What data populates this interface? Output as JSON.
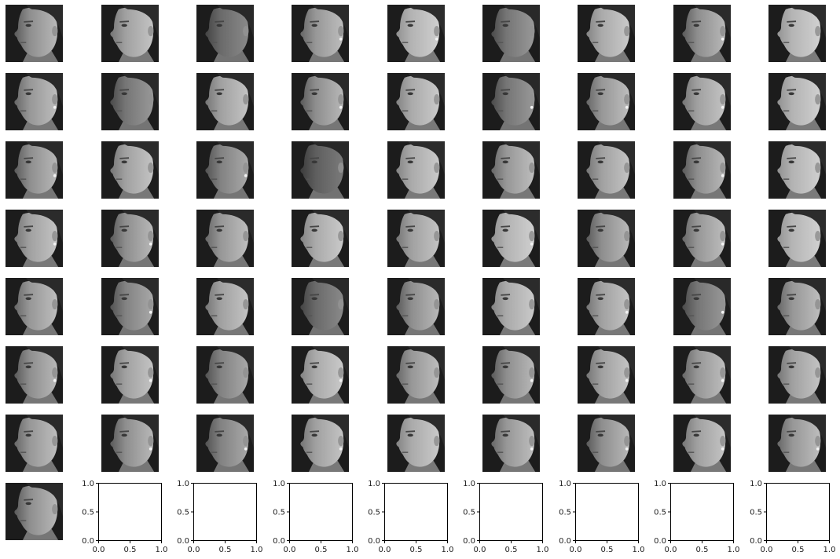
{
  "chart_data": {
    "type": "image-grid",
    "title": "",
    "grid": {
      "rows": 8,
      "cols": 9
    },
    "image_count": 64,
    "empty_axes_count": 8,
    "colormap": "grayscale",
    "face_variants": [
      {
        "e": 0,
        "b": 0.0
      },
      {
        "e": 0,
        "b": 0.02
      },
      {
        "e": 0,
        "b": -0.03
      },
      {
        "e": 1,
        "b": 0.01
      },
      {
        "e": 1,
        "b": 0.04
      },
      {
        "e": 0,
        "b": -0.02
      },
      {
        "e": 0,
        "b": 0.03
      },
      {
        "e": 1,
        "b": 0.0
      },
      {
        "e": 0,
        "b": 0.05
      },
      {
        "e": 1,
        "b": 0.01
      },
      {
        "e": 0,
        "b": -0.02
      },
      {
        "e": 0,
        "b": 0.02
      },
      {
        "e": 1,
        "b": 0.0
      },
      {
        "e": 0,
        "b": 0.03
      },
      {
        "e": 1,
        "b": -0.02
      },
      {
        "e": 1,
        "b": 0.01
      },
      {
        "e": 1,
        "b": 0.02
      },
      {
        "e": 0,
        "b": 0.04
      },
      {
        "e": 1,
        "b": 0.0
      },
      {
        "e": 0,
        "b": 0.02
      },
      {
        "e": 1,
        "b": -0.01
      },
      {
        "e": 0,
        "b": -0.04
      },
      {
        "e": 0,
        "b": 0.03
      },
      {
        "e": 0,
        "b": 0.01
      },
      {
        "e": 0,
        "b": 0.02
      },
      {
        "e": 1,
        "b": 0.0
      },
      {
        "e": 0,
        "b": 0.04
      },
      {
        "e": 1,
        "b": 0.02
      },
      {
        "e": 1,
        "b": 0.0
      },
      {
        "e": 0,
        "b": 0.01
      },
      {
        "e": 0,
        "b": 0.03
      },
      {
        "e": 0,
        "b": 0.02
      },
      {
        "e": 1,
        "b": 0.04
      },
      {
        "e": 0,
        "b": 0.0
      },
      {
        "e": 1,
        "b": 0.01
      },
      {
        "e": 0,
        "b": 0.05
      },
      {
        "e": 0,
        "b": 0.01
      },
      {
        "e": 1,
        "b": -0.01
      },
      {
        "e": 0,
        "b": 0.02
      },
      {
        "e": 0,
        "b": -0.03
      },
      {
        "e": 0,
        "b": 0.0
      },
      {
        "e": 0,
        "b": 0.03
      },
      {
        "e": 1,
        "b": 0.02
      },
      {
        "e": 1,
        "b": -0.02
      },
      {
        "e": 0,
        "b": 0.01
      },
      {
        "e": 1,
        "b": 0.0
      },
      {
        "e": 1,
        "b": 0.02
      },
      {
        "e": 0,
        "b": -0.01
      },
      {
        "e": 1,
        "b": 0.03
      },
      {
        "e": 0,
        "b": 0.01
      },
      {
        "e": 1,
        "b": 0.0
      },
      {
        "e": 1,
        "b": 0.02
      },
      {
        "e": 1,
        "b": 0.01
      },
      {
        "e": 0,
        "b": 0.02
      },
      {
        "e": 0,
        "b": 0.01
      },
      {
        "e": 1,
        "b": 0.0
      },
      {
        "e": 1,
        "b": -0.01
      },
      {
        "e": 1,
        "b": 0.02
      },
      {
        "e": 0,
        "b": 0.03
      },
      {
        "e": 1,
        "b": 0.01
      },
      {
        "e": 1,
        "b": 0.0
      },
      {
        "e": 1,
        "b": 0.02
      },
      {
        "e": 1,
        "b": 0.01
      },
      {
        "e": 0,
        "b": 0.0
      }
    ],
    "empty_axes": {
      "xlim": [
        0.0,
        1.0
      ],
      "ylim": [
        0.0,
        1.0
      ],
      "x_ticks": [
        "0.0",
        "0.5",
        "1.0"
      ],
      "y_ticks": [
        "0.0",
        "0.5",
        "1.0"
      ]
    },
    "colors": {
      "background": "#ffffff",
      "image_background": "#1c1c1c",
      "axis_spine": "#000000",
      "tick_text": "#222222"
    }
  }
}
